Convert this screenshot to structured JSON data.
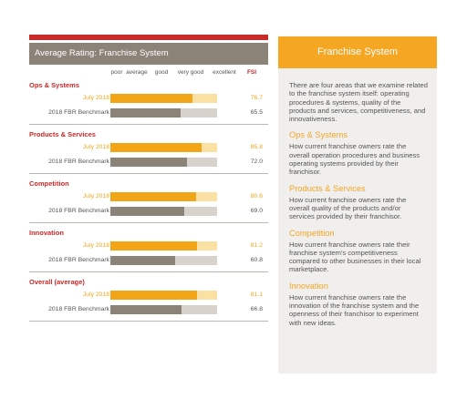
{
  "chart_data": {
    "type": "bar",
    "title": "Average Rating: Franchise System",
    "scale_labels": [
      "poor",
      "average",
      "good",
      "very good",
      "excellent"
    ],
    "value_header": "FSI",
    "xlim": [
      0,
      100
    ],
    "groups": [
      {
        "name": "Ops & Systems",
        "series": [
          {
            "name": "July 2018",
            "value": 76.7,
            "label": "76.7"
          },
          {
            "name": "2018 FBR Benchmark",
            "value": 65.5,
            "label": "65.5"
          }
        ]
      },
      {
        "name": "Products & Services",
        "series": [
          {
            "name": "July 2018",
            "value": 85.8,
            "label": "85.8"
          },
          {
            "name": "2018 FBR Benchmark",
            "value": 72.0,
            "label": "72.0"
          }
        ]
      },
      {
        "name": "Competition",
        "series": [
          {
            "name": "July 2018",
            "value": 80.6,
            "label": "80.6"
          },
          {
            "name": "2018 FBR Benchmark",
            "value": 69.0,
            "label": "69.0"
          }
        ]
      },
      {
        "name": "Innovation",
        "series": [
          {
            "name": "July 2018",
            "value": 81.2,
            "label": "81.2"
          },
          {
            "name": "2018 FBR Benchmark",
            "value": 60.8,
            "label": "60.8"
          }
        ]
      },
      {
        "name": "Overall (average)",
        "series": [
          {
            "name": "July 2018",
            "value": 81.1,
            "label": "81.1"
          },
          {
            "name": "2018 FBR Benchmark",
            "value": 66.8,
            "label": "66.8"
          }
        ]
      }
    ],
    "colors": {
      "current": "#f2a516",
      "current_track": "#fbe0a3",
      "benchmark": "#8c8378",
      "benchmark_track": "#d7d3cc",
      "accent": "#c92a2a"
    }
  },
  "panel": {
    "title": "Franchise System",
    "intro": "There are four areas that we examine related to the franchise system itself: operating procedures & systems, quality of the products and services, competitiveness, and innovativeness.",
    "sections": [
      {
        "title": "Ops & Systems",
        "text": "How current franchise owners rate the overall operation procedures and business operating systems provided by their franchisor."
      },
      {
        "title": "Products & Services",
        "text": "How current franchise owners rate the overall quality of the products and/or services provided by their franchisor."
      },
      {
        "title": "Competition",
        "text": "How current franchise owners rate their franchise system's competitiveness compared to other businesses in their local marketplace."
      },
      {
        "title": "Innovation",
        "text": "How current franchise owners rate the innovation of the franchise system and the openness of their franchisor to experiment with new ideas."
      }
    ],
    "colors": {
      "header": "#f5a623",
      "background": "#f0efee"
    }
  }
}
